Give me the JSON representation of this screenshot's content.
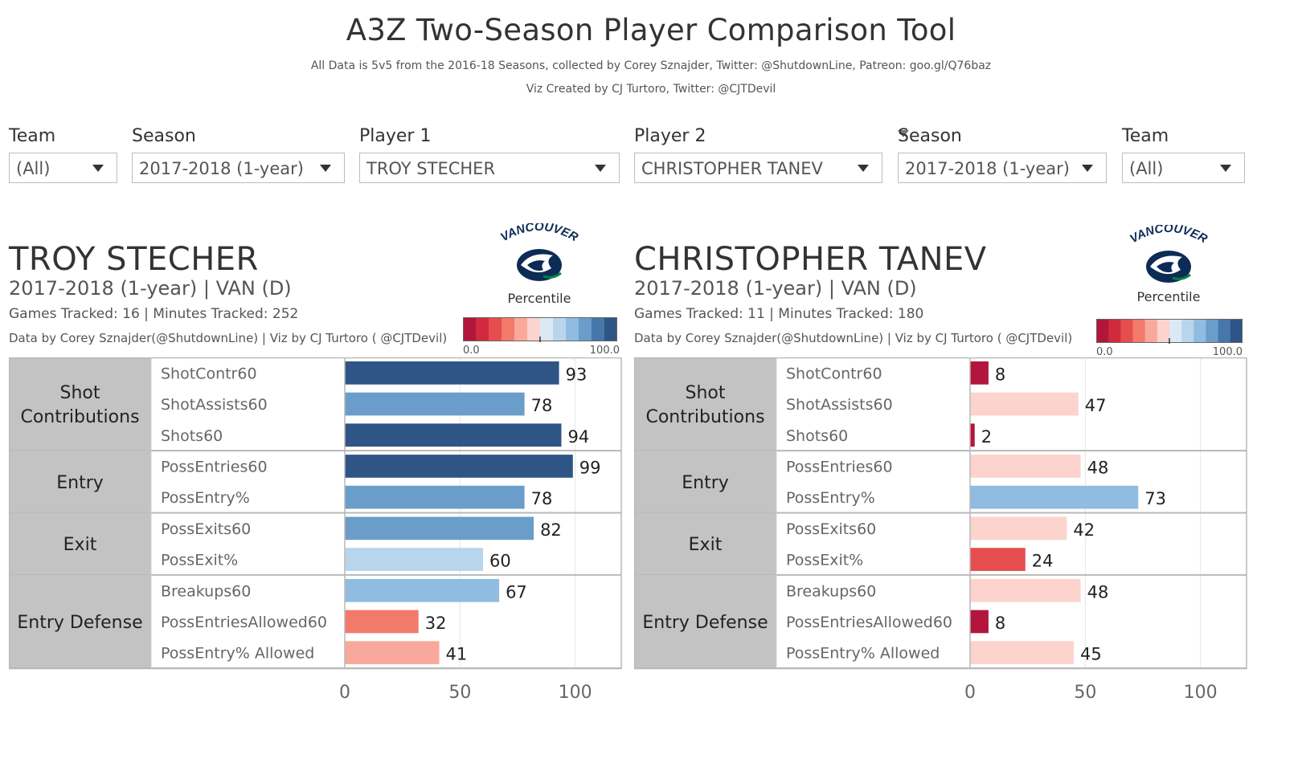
{
  "header": {
    "title": "A3Z Two-Season Player Comparison Tool",
    "subtitle1": "All Data is 5v5 from the 2016-18 Seasons, collected by Corey Sznajder, Twitter: @ShutdownLine, Patreon: goo.gl/Q76baz",
    "subtitle2": "Viz Created by CJ Turtoro, Twitter: @CJTDevil"
  },
  "filters": {
    "team1": {
      "label": "Team",
      "value": "(All)"
    },
    "season1": {
      "label": "Season",
      "value": "2017-2018 (1-year)"
    },
    "player1": {
      "label": "Player 1",
      "value": "TROY STECHER"
    },
    "player2": {
      "label": "Player 2",
      "value": "CHRISTOPHER TANEV"
    },
    "season2": {
      "label": "Season",
      "value": "2017-2018 (1-year)"
    },
    "team2": {
      "label": "Team",
      "value": "(All)"
    }
  },
  "legend": {
    "label": "Percentile",
    "min": "0.0",
    "max": "100.0",
    "colors": [
      "#b2163c",
      "#d12a3d",
      "#e54d4f",
      "#f27a6b",
      "#f9a99b",
      "#fcd3cd",
      "#dbe9f5",
      "#b8d5ec",
      "#8fbce0",
      "#6a9dc9",
      "#4676aa",
      "#2e5585"
    ]
  },
  "team_logo": {
    "wordmark": "VANCOUVER"
  },
  "players": [
    {
      "name": "TROY STECHER",
      "season_line": "2017-2018 (1-year) | VAN (D)",
      "tracked_line": "Games Tracked: 16  | Minutes Tracked: 252",
      "credit_line": "Data by Corey Sznajder(@ShutdownLine) | Viz by CJ Turtoro ( @CJTDevil)"
    },
    {
      "name": "CHRISTOPHER TANEV",
      "season_line": "2017-2018 (1-year) | VAN (D)",
      "tracked_line": "Games Tracked: 11  | Minutes Tracked: 180",
      "credit_line": "Data by Corey Sznajder(@ShutdownLine) | Viz by CJ Turtoro ( @CJTDevil)"
    }
  ],
  "chart_data": [
    {
      "type": "bar",
      "orientation": "horizontal",
      "player": "TROY STECHER",
      "groups": [
        {
          "name": "Shot Contributions",
          "metrics": [
            "ShotContr60",
            "ShotAssists60",
            "Shots60"
          ],
          "values": [
            93,
            78,
            94
          ]
        },
        {
          "name": "Entry",
          "metrics": [
            "PossEntries60",
            "PossEntry%"
          ],
          "values": [
            99,
            78
          ]
        },
        {
          "name": "Exit",
          "metrics": [
            "PossExits60",
            "PossExit%"
          ],
          "values": [
            82,
            60
          ]
        },
        {
          "name": "Entry Defense",
          "metrics": [
            "Breakups60",
            "PossEntriesAllowed60",
            "PossEntry% Allowed"
          ],
          "values": [
            67,
            32,
            41
          ]
        }
      ],
      "xlim": [
        0,
        120
      ],
      "xticks": [
        0,
        50,
        100
      ],
      "grid": true,
      "color_scale": "percentile red-to-blue"
    },
    {
      "type": "bar",
      "orientation": "horizontal",
      "player": "CHRISTOPHER TANEV",
      "groups": [
        {
          "name": "Shot Contributions",
          "metrics": [
            "ShotContr60",
            "ShotAssists60",
            "Shots60"
          ],
          "values": [
            8,
            47,
            2
          ]
        },
        {
          "name": "Entry",
          "metrics": [
            "PossEntries60",
            "PossEntry%"
          ],
          "values": [
            48,
            73
          ]
        },
        {
          "name": "Exit",
          "metrics": [
            "PossExits60",
            "PossExit%"
          ],
          "values": [
            42,
            24
          ]
        },
        {
          "name": "Entry Defense",
          "metrics": [
            "Breakups60",
            "PossEntriesAllowed60",
            "PossEntry% Allowed"
          ],
          "values": [
            48,
            8,
            45
          ]
        }
      ],
      "xlim": [
        0,
        120
      ],
      "xticks": [
        0,
        50,
        100
      ],
      "grid": true,
      "color_scale": "percentile red-to-blue"
    }
  ]
}
